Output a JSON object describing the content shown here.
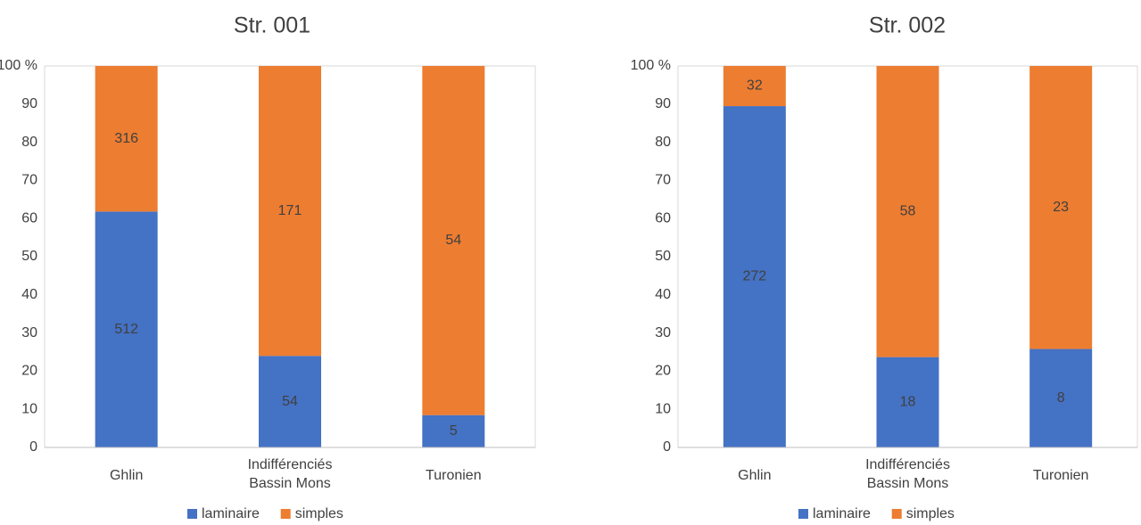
{
  "legend": {
    "placement": "bottom"
  },
  "chart_data": [
    {
      "type": "bar",
      "stacked": true,
      "normalized": true,
      "title": "Str. 001",
      "categories": [
        "Ghlin",
        "Indifférenciés Bassin Mons",
        "Turonien"
      ],
      "category_lines": [
        [
          "Ghlin"
        ],
        [
          "Indifférenciés",
          "Bassin Mons"
        ],
        [
          "Turonien"
        ]
      ],
      "ylim": [
        0,
        100
      ],
      "yticks": [
        "0",
        "10",
        "20",
        "30",
        "40",
        "50",
        "60",
        "70",
        "80",
        "90",
        "100 %"
      ],
      "series": [
        {
          "name": "laminaire",
          "color": "#4472c4",
          "values": [
            512,
            54,
            5
          ]
        },
        {
          "name": "simples",
          "color": "#ed7d31",
          "values": [
            316,
            171,
            54
          ]
        }
      ]
    },
    {
      "type": "bar",
      "stacked": true,
      "normalized": true,
      "title": "Str. 002",
      "categories": [
        "Ghlin",
        "Indifférenciés Bassin Mons",
        "Turonien"
      ],
      "category_lines": [
        [
          "Ghlin"
        ],
        [
          "Indifférenciés",
          "Bassin Mons"
        ],
        [
          "Turonien"
        ]
      ],
      "ylim": [
        0,
        100
      ],
      "yticks": [
        "0",
        "10",
        "20",
        "30",
        "40",
        "50",
        "60",
        "70",
        "80",
        "90",
        "100 %"
      ],
      "series": [
        {
          "name": "laminaire",
          "color": "#4472c4",
          "values": [
            272,
            18,
            8
          ]
        },
        {
          "name": "simples",
          "color": "#ed7d31",
          "values": [
            32,
            58,
            23
          ]
        }
      ]
    }
  ]
}
